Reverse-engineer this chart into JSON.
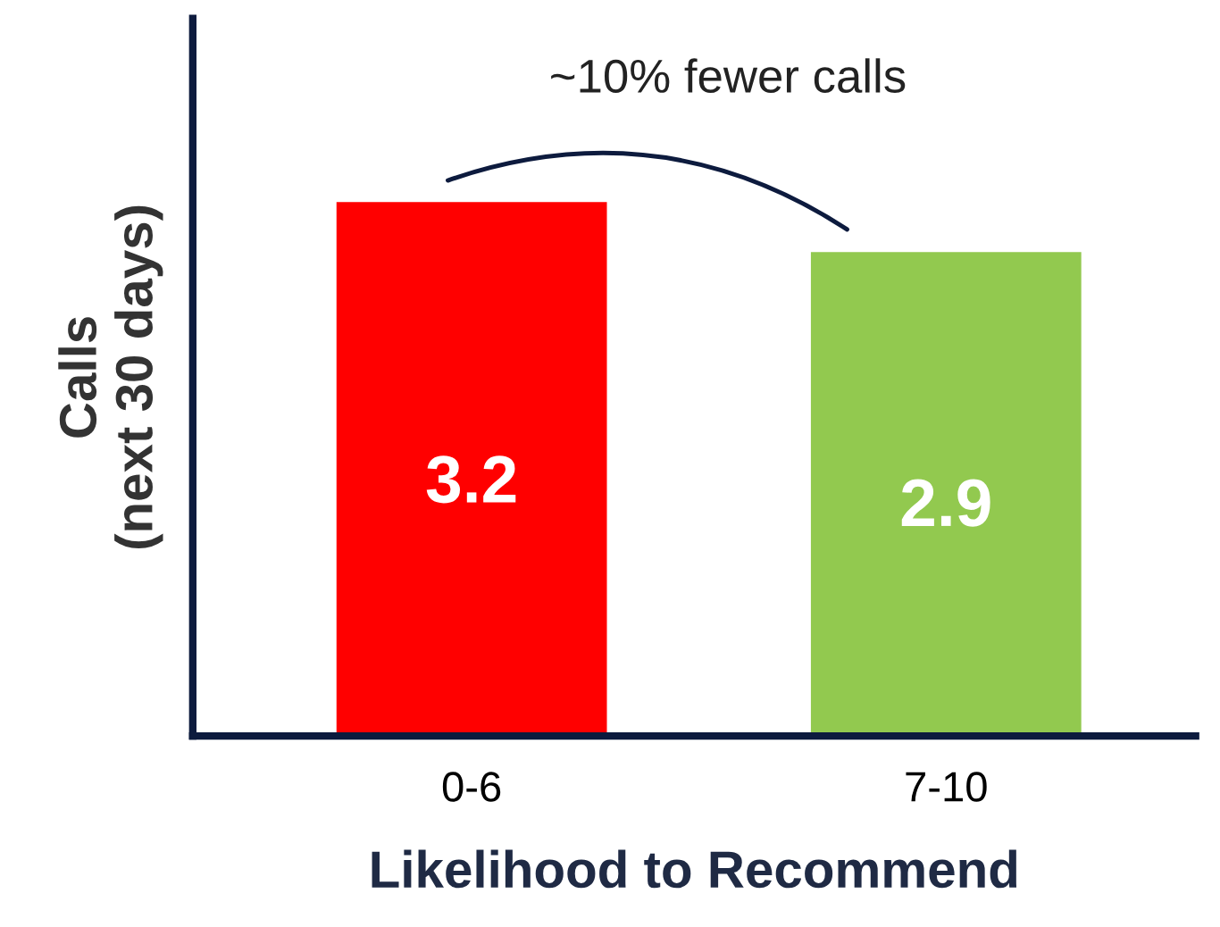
{
  "chart_data": {
    "type": "bar",
    "xlabel": "Likelihood to Recommend",
    "ylabel": "Calls\n(next 30 days)",
    "categories": [
      "0-6",
      "7-10"
    ],
    "values": [
      3.2,
      2.9
    ],
    "colors": [
      "#ff0000",
      "#92c94f"
    ],
    "ylim": [
      0,
      4.3
    ],
    "tick_labels": "x",
    "data_labels": true,
    "grid": false,
    "annotations": [
      "~10% fewer calls"
    ]
  }
}
